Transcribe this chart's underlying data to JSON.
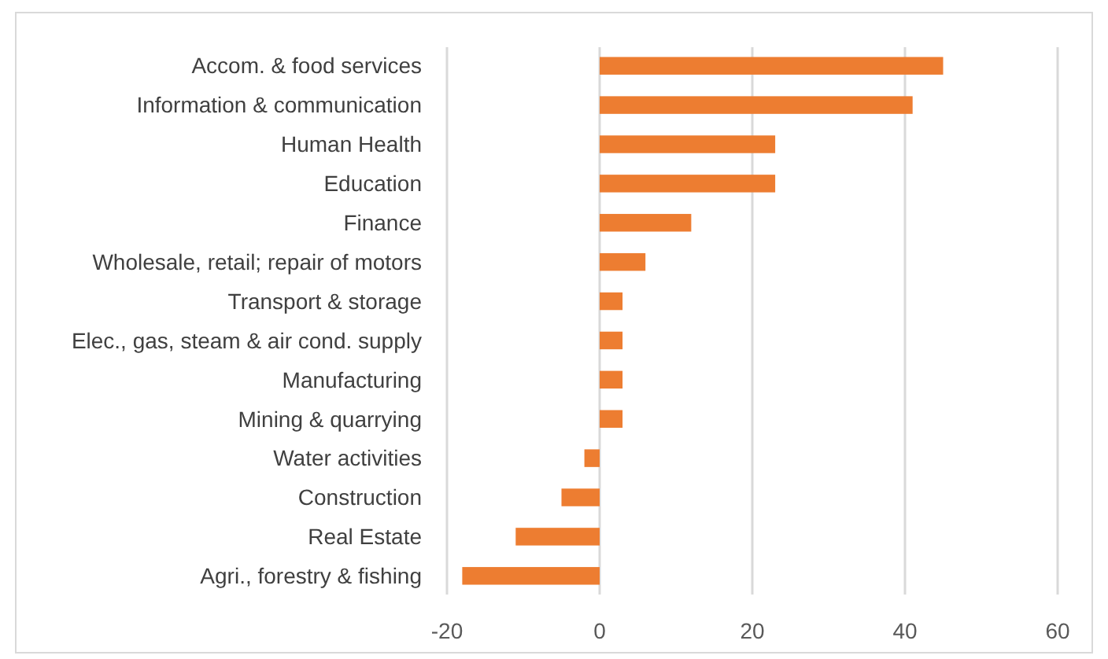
{
  "chart_data": {
    "type": "bar",
    "orientation": "horizontal",
    "categories": [
      "Accom. & food services",
      "Information & communication",
      "Human Health",
      "Education",
      "Finance",
      "Wholesale, retail; repair of motors",
      "Transport & storage",
      "Elec., gas, steam & air cond. supply",
      "Manufacturing",
      "Mining & quarrying",
      "Water activities",
      "Construction",
      "Real Estate",
      "Agri., forestry & fishing"
    ],
    "values": [
      45,
      41,
      23,
      23,
      12,
      6,
      3,
      3,
      3,
      3,
      -2,
      -5,
      -11,
      -18
    ],
    "color": "#ed7d31",
    "xlim": [
      -20,
      60
    ],
    "xticks": [
      -20,
      0,
      20,
      40,
      60
    ],
    "grid": "x"
  }
}
